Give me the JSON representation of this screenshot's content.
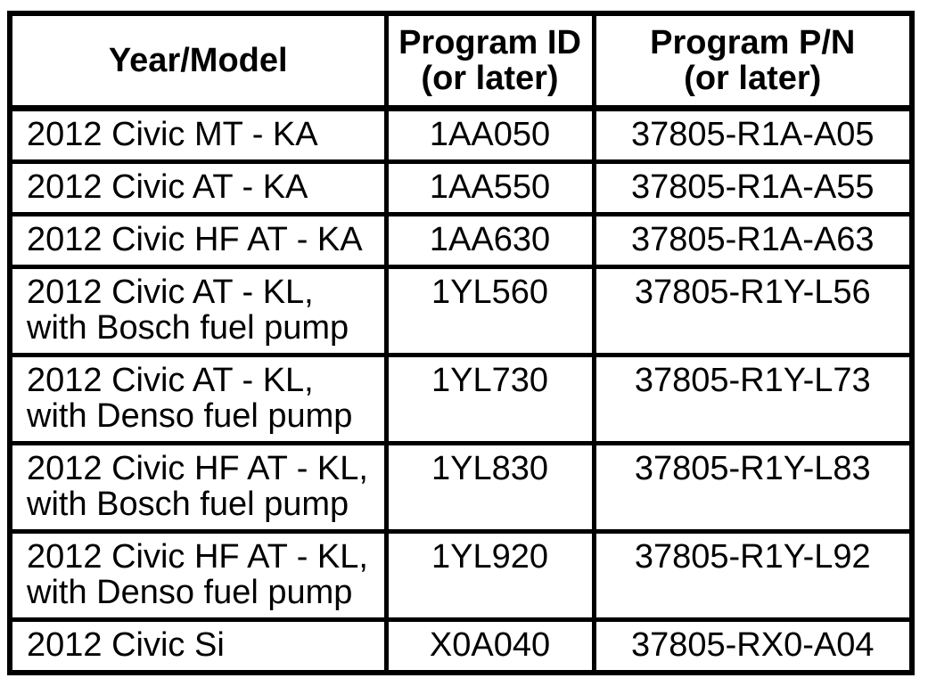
{
  "table": {
    "headers": {
      "year_model": {
        "line1": "Year/Model",
        "line2": ""
      },
      "program_id": {
        "line1": "Program ID",
        "line2": "(or later)"
      },
      "program_pn": {
        "line1": "Program P/N",
        "line2": "(or later)"
      }
    },
    "rows": [
      {
        "model": "2012 Civic MT - KA",
        "model_line2": "",
        "program_id": "1AA050",
        "program_pn": "37805-R1A-A05"
      },
      {
        "model": "2012 Civic AT - KA",
        "model_line2": "",
        "program_id": "1AA550",
        "program_pn": "37805-R1A-A55"
      },
      {
        "model": "2012 Civic HF AT - KA",
        "model_line2": "",
        "program_id": "1AA630",
        "program_pn": "37805-R1A-A63"
      },
      {
        "model": "2012 Civic AT - KL,",
        "model_line2": "with Bosch fuel pump",
        "program_id": "1YL560",
        "program_pn": "37805-R1Y-L56"
      },
      {
        "model": "2012 Civic AT - KL,",
        "model_line2": "with Denso fuel pump",
        "program_id": "1YL730",
        "program_pn": "37805-R1Y-L73"
      },
      {
        "model": "2012 Civic HF AT - KL,",
        "model_line2": "with Bosch fuel pump",
        "program_id": "1YL830",
        "program_pn": "37805-R1Y-L83"
      },
      {
        "model": "2012 Civic HF AT - KL,",
        "model_line2": "with Denso fuel pump",
        "program_id": "1YL920",
        "program_pn": "37805-R1Y-L92"
      },
      {
        "model": "2012 Civic Si",
        "model_line2": "",
        "program_id": "X0A040",
        "program_pn": "37805-RX0-A04"
      }
    ],
    "colors": {
      "border": "#000000",
      "text": "#000000",
      "background": "#ffffff"
    }
  }
}
